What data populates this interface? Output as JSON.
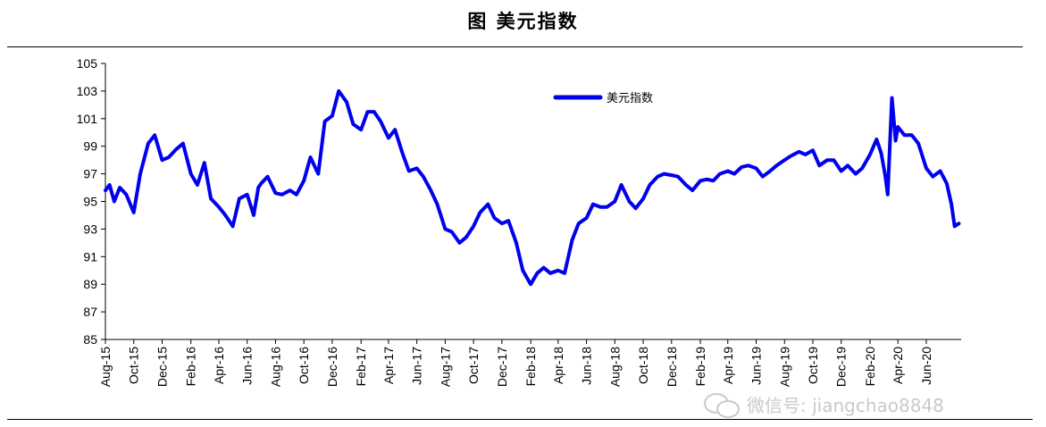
{
  "header": {
    "title": "图  美元指数"
  },
  "watermark": {
    "text": "微信号: jiangchao8848",
    "icon": "wechat-icon"
  },
  "colors": {
    "series": "#0000ee"
  },
  "chart_data": {
    "type": "line",
    "title": "图  美元指数",
    "xlabel": "",
    "ylabel": "",
    "ylim": [
      85,
      105
    ],
    "y_ticks": [
      85,
      87,
      89,
      91,
      93,
      95,
      97,
      99,
      101,
      103,
      105
    ],
    "x_ticks": [
      "Aug-15",
      "Oct-15",
      "Dec-15",
      "Feb-16",
      "Apr-16",
      "Jun-16",
      "Aug-16",
      "Oct-16",
      "Dec-16",
      "Feb-17",
      "Apr-17",
      "Jun-17",
      "Aug-17",
      "Oct-17",
      "Dec-17",
      "Feb-18",
      "Apr-18",
      "Jun-18",
      "Aug-18",
      "Oct-18",
      "Dec-18",
      "Feb-19",
      "Apr-19",
      "Jun-19",
      "Aug-19",
      "Oct-19",
      "Dec-19",
      "Feb-20",
      "Apr-20",
      "Jun-20"
    ],
    "legend": {
      "position": "top-center",
      "entries": [
        "美元指数"
      ]
    },
    "grid": false,
    "series": [
      {
        "name": "美元指数",
        "x": [
          "2015-08-01",
          "2015-08-10",
          "2015-08-20",
          "2015-09-01",
          "2015-09-15",
          "2015-10-01",
          "2015-10-15",
          "2015-11-01",
          "2015-11-15",
          "2015-12-01",
          "2015-12-15",
          "2016-01-01",
          "2016-01-15",
          "2016-02-01",
          "2016-02-15",
          "2016-03-01",
          "2016-03-15",
          "2016-04-01",
          "2016-04-15",
          "2016-05-01",
          "2016-05-15",
          "2016-06-01",
          "2016-06-15",
          "2016-06-25",
          "2016-07-01",
          "2016-07-15",
          "2016-08-01",
          "2016-08-15",
          "2016-09-01",
          "2016-09-15",
          "2016-10-01",
          "2016-10-15",
          "2016-11-01",
          "2016-11-15",
          "2016-12-01",
          "2016-12-15",
          "2017-01-01",
          "2017-01-15",
          "2017-02-01",
          "2017-02-15",
          "2017-03-01",
          "2017-03-15",
          "2017-04-01",
          "2017-04-15",
          "2017-05-01",
          "2017-05-15",
          "2017-06-01",
          "2017-06-15",
          "2017-07-01",
          "2017-07-15",
          "2017-08-01",
          "2017-08-15",
          "2017-09-01",
          "2017-09-15",
          "2017-10-01",
          "2017-10-15",
          "2017-11-01",
          "2017-11-15",
          "2017-12-01",
          "2017-12-15",
          "2018-01-01",
          "2018-01-15",
          "2018-02-01",
          "2018-02-15",
          "2018-03-01",
          "2018-03-15",
          "2018-04-01",
          "2018-04-15",
          "2018-05-01",
          "2018-05-15",
          "2018-06-01",
          "2018-06-15",
          "2018-07-01",
          "2018-07-15",
          "2018-08-01",
          "2018-08-15",
          "2018-09-01",
          "2018-09-15",
          "2018-10-01",
          "2018-10-15",
          "2018-11-01",
          "2018-11-15",
          "2018-12-01",
          "2018-12-15",
          "2019-01-01",
          "2019-01-15",
          "2019-02-01",
          "2019-02-15",
          "2019-03-01",
          "2019-03-15",
          "2019-04-01",
          "2019-04-15",
          "2019-05-01",
          "2019-05-15",
          "2019-06-01",
          "2019-06-15",
          "2019-07-01",
          "2019-07-15",
          "2019-08-01",
          "2019-08-15",
          "2019-09-01",
          "2019-09-15",
          "2019-10-01",
          "2019-10-15",
          "2019-11-01",
          "2019-11-15",
          "2019-12-01",
          "2019-12-15",
          "2020-01-01",
          "2020-01-15",
          "2020-02-01",
          "2020-02-15",
          "2020-02-25",
          "2020-03-05",
          "2020-03-10",
          "2020-03-19",
          "2020-03-27",
          "2020-04-01",
          "2020-04-15",
          "2020-05-01",
          "2020-05-15",
          "2020-06-01",
          "2020-06-15",
          "2020-07-01",
          "2020-07-15",
          "2020-07-25",
          "2020-08-01",
          "2020-08-10"
        ],
        "y": [
          95.8,
          96.2,
          95.0,
          96.0,
          95.5,
          94.2,
          97.0,
          99.2,
          99.8,
          98.0,
          98.2,
          98.8,
          99.2,
          97.0,
          96.2,
          97.8,
          95.2,
          94.6,
          94.0,
          93.2,
          95.2,
          95.5,
          94.0,
          96.0,
          96.3,
          96.8,
          95.6,
          95.5,
          95.8,
          95.5,
          96.5,
          98.2,
          97.0,
          100.8,
          101.2,
          103.0,
          102.2,
          100.6,
          100.2,
          101.5,
          101.5,
          100.8,
          99.6,
          100.2,
          98.5,
          97.2,
          97.4,
          96.8,
          95.8,
          94.8,
          93.0,
          92.8,
          92.0,
          92.4,
          93.2,
          94.2,
          94.8,
          93.8,
          93.4,
          93.6,
          92.0,
          90.0,
          89.0,
          89.8,
          90.2,
          89.8,
          90.0,
          89.8,
          92.2,
          93.4,
          93.8,
          94.8,
          94.6,
          94.6,
          95.0,
          96.2,
          95.0,
          94.5,
          95.2,
          96.2,
          96.8,
          97.0,
          96.9,
          96.8,
          96.2,
          95.8,
          96.5,
          96.6,
          96.5,
          97.0,
          97.2,
          97.0,
          97.5,
          97.6,
          97.4,
          96.8,
          97.2,
          97.6,
          98.0,
          98.3,
          98.6,
          98.4,
          98.7,
          97.6,
          98.0,
          98.0,
          97.2,
          97.6,
          97.0,
          97.4,
          98.4,
          99.5,
          98.5,
          96.8,
          95.5,
          102.5,
          99.4,
          100.4,
          99.8,
          99.8,
          99.2,
          97.4,
          96.8,
          97.2,
          96.3,
          94.8,
          93.2,
          93.4
        ]
      }
    ]
  }
}
